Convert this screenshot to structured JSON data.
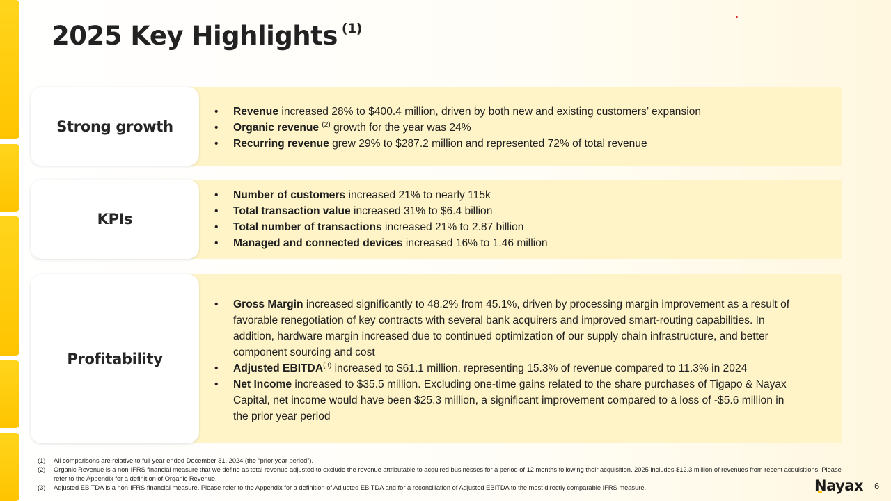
{
  "slide": {
    "title": "2025 Key Highlights",
    "title_footnote": "(1)",
    "page_number": "6",
    "logo_text": "Nayax"
  },
  "sections": [
    {
      "label": "Strong growth",
      "bullets": [
        {
          "bold": "Revenue",
          "text": " increased 28% to $400.4 million, driven by both new and existing customers’ expansion"
        },
        {
          "bold": "Organic revenue",
          "sup": "(2)",
          "text": " growth for the year was 24%"
        },
        {
          "bold": "Recurring revenue",
          "text": " grew 29% to $287.2 million and represented 72% of total revenue"
        }
      ]
    },
    {
      "label": "KPIs",
      "bullets": [
        {
          "bold": "Number of customers",
          "text": " increased 21% to nearly 115k"
        },
        {
          "bold": "Total transaction value",
          "text": " increased 31% to $6.4 billion"
        },
        {
          "bold": "Total number of transactions",
          "text": " increased 21% to 2.87 billion"
        },
        {
          "bold": "Managed and connected devices",
          "text": " increased 16% to 1.46 million"
        }
      ]
    },
    {
      "label": "Profitability",
      "bullets": [
        {
          "bold": "Gross Margin",
          "text": " increased significantly to 48.2% from 45.1%, driven by processing margin improvement as a result of favorable renegotiation of key contracts with several bank acquirers and improved smart-routing capabilities. In addition, hardware margin increased due to continued optimization of our supply chain infrastructure, and better component sourcing and cost"
        },
        {
          "bold": "Adjusted EBITDA",
          "sup": "(3)",
          "text": " increased to $61.1 million, representing 15.3% of revenue compared to 11.3% in 2024"
        },
        {
          "bold": "Net Income",
          "text": " increased to $35.5 million. Excluding one-time gains related to the share purchases of Tigapo & Nayax Capital, net income would have been $25.3 million, a significant improvement compared to a loss of -$5.6 million in the prior year period"
        }
      ]
    }
  ],
  "footnotes": [
    {
      "num": "(1)",
      "text": "All comparisons are relative to full year ended December 31, 2024 (the “prior year period”)."
    },
    {
      "num": "(2)",
      "text": "Organic Revenue is a non-IFRS financial measure that we define as total revenue adjusted to exclude the revenue attributable to acquired businesses for a period of 12 months following their acquisition. 2025 includes $12.3 million of revenues from recent acquisitions. Please refer to the Appendix for a definition of Organic Revenue."
    },
    {
      "num": "(3)",
      "text": "Adjusted  EBITDA is a non-IFRS financial measure. Please refer to the Appendix for a definition of Adjusted EBITDA and for a reconciliation of Adjusted EBITDA to the most directly comparable IFRS measure."
    }
  ],
  "colors": {
    "accent_yellow": "#ffc400",
    "panel_fill": "#fff4c8"
  }
}
